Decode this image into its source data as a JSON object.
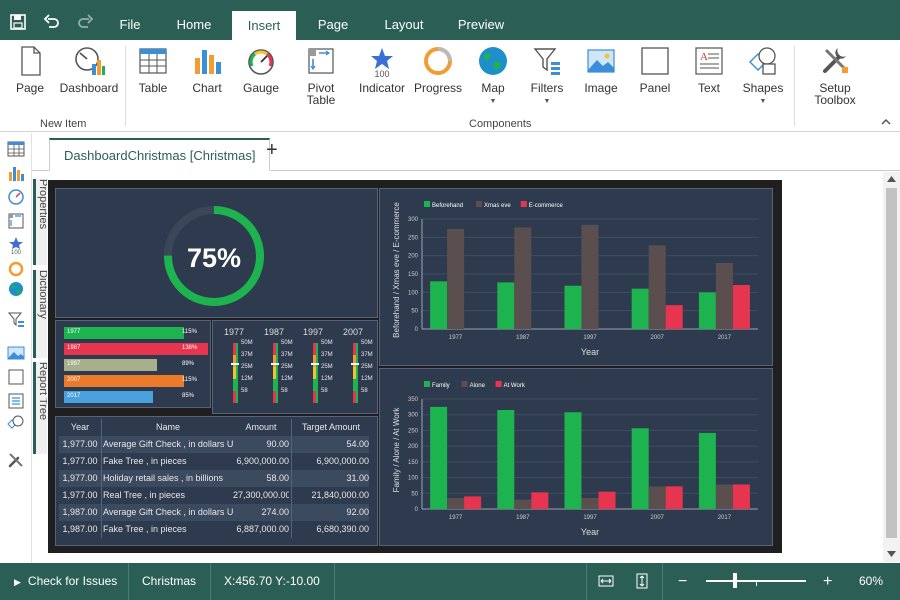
{
  "menu": {
    "tabs": [
      "File",
      "Home",
      "Insert",
      "Page",
      "Layout",
      "Preview"
    ],
    "active": "Insert"
  },
  "ribbon": {
    "new_item_group": "New Item",
    "components_group": "Components",
    "buttons": {
      "page": "Page",
      "dashboard": "Dashboard",
      "table": "Table",
      "chart": "Chart",
      "gauge": "Gauge",
      "pivot_table": "Pivot Table",
      "indicator": "Indicator",
      "indicator_value": "100",
      "progress": "Progress",
      "map": "Map",
      "filters": "Filters",
      "image": "Image",
      "panel": "Panel",
      "text": "Text",
      "shapes": "Shapes",
      "setup_toolbox": "Setup Toolbox"
    }
  },
  "left_toolbar": {
    "indicator_value": "100"
  },
  "side_tabs": {
    "properties": "Properties",
    "dictionary": "Dictionary",
    "report_tree": "Report Tree"
  },
  "document": {
    "tab_label": "DashboardChristmas [Christmas]",
    "add_tab": "+"
  },
  "dashboard": {
    "gauge_value": "75%",
    "gauge_fraction": 0.75,
    "progress_rows": [
      {
        "label": "1977",
        "value": "115%",
        "color": "#1db34f"
      },
      {
        "label": "1987",
        "value": "138%",
        "color": "#e8354f"
      },
      {
        "label": "1997",
        "value": "89%",
        "color": "#a7b08b"
      },
      {
        "label": "2007",
        "value": "115%",
        "color": "#ec7a2b"
      },
      {
        "label": "2017",
        "value": "85%",
        "color": "#4a9fdd"
      }
    ],
    "gauges": {
      "years": [
        "1977",
        "1987",
        "1997",
        "2007"
      ],
      "ticks": [
        "50M",
        "37M",
        "25M",
        "12M",
        "58"
      ]
    },
    "table": {
      "headers": [
        "Year",
        "Name",
        "Amount",
        "Target Amount"
      ],
      "rows": [
        [
          "1,977.00",
          "Average Gift Check  , in dollars USA",
          "90.00",
          "54.00"
        ],
        [
          "1,977.00",
          "Fake Tree , in pieces",
          "6,900,000.00",
          "6,900,000.00"
        ],
        [
          "1,977.00",
          "Holiday retail sales  , in billions",
          "58.00",
          "31.00"
        ],
        [
          "1,977.00",
          "Real Tree , in pieces",
          "27,300,000.00",
          "21,840,000.00"
        ],
        [
          "1,987.00",
          "Average Gift Check  , in dollars USA",
          "274.00",
          "92.00"
        ],
        [
          "1,987.00",
          "Fake Tree , in pieces",
          "6,887,000.00",
          "6,680,390.00"
        ]
      ]
    }
  },
  "chart_data": [
    {
      "type": "bar",
      "title": "",
      "xlabel": "Year",
      "ylabel": "Beforehand / Xmas eve / E-commerce",
      "categories": [
        "1977",
        "1987",
        "1997",
        "2007",
        "2017"
      ],
      "series": [
        {
          "name": "Beforehand",
          "color": "#1db34f",
          "values": [
            130,
            127,
            118,
            110,
            100
          ]
        },
        {
          "name": "Xmas eve",
          "color": "#5a4e4e",
          "values": [
            273,
            277,
            284,
            228,
            180
          ]
        },
        {
          "name": "E-commerce",
          "color": "#e8354f",
          "values": [
            0,
            0,
            0,
            65,
            120
          ]
        }
      ],
      "ylim": [
        0,
        300
      ],
      "yticks": [
        0,
        50,
        100,
        150,
        200,
        250,
        300
      ],
      "legend": "top-left",
      "grid": true
    },
    {
      "type": "bar",
      "title": "",
      "xlabel": "Year",
      "ylabel": "Family / Alone / At Work",
      "categories": [
        "1977",
        "1987",
        "1997",
        "2007",
        "2017"
      ],
      "series": [
        {
          "name": "Family",
          "color": "#1db34f",
          "values": [
            325,
            315,
            308,
            257,
            242
          ]
        },
        {
          "name": "Alone",
          "color": "#5a4e4e",
          "values": [
            35,
            30,
            35,
            72,
            78
          ]
        },
        {
          "name": "At Work",
          "color": "#e8354f",
          "values": [
            40,
            53,
            55,
            72,
            78
          ]
        }
      ],
      "ylim": [
        0,
        350
      ],
      "yticks": [
        0,
        50,
        100,
        150,
        200,
        250,
        300,
        350
      ],
      "legend": "top-left",
      "grid": true
    }
  ],
  "status": {
    "check_issues": "Check for Issues",
    "page_name": "Christmas",
    "coords": "X:456.70 Y:-10.00",
    "zoom": "60%",
    "zoom_minus": "−",
    "zoom_plus": "+",
    "zoom_fraction": 0.27
  }
}
